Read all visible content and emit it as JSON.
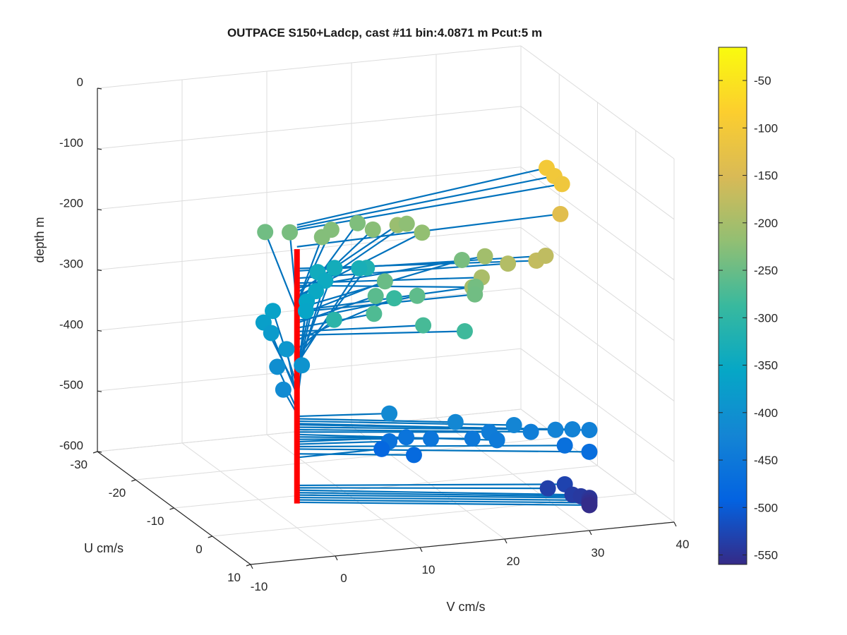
{
  "chart_data": {
    "type": "scatter",
    "title": "OUTPACE S150+Ladcp, cast #11 bin:4.0871 m  Pcut:5 m",
    "xlabel": "V cm/s",
    "ylabel": "U cm/s",
    "zlabel": "depth m",
    "xlim": [
      -10,
      40
    ],
    "ylim": [
      -30,
      10
    ],
    "zlim": [
      -600,
      0
    ],
    "x_ticks": [
      "-10",
      "0",
      "10",
      "20",
      "30",
      "40"
    ],
    "y_ticks": [
      "-30",
      "-20",
      "-10",
      "0",
      "10"
    ],
    "z_ticks": [
      "0",
      "-100",
      "-200",
      "-300",
      "-400",
      "-500",
      "-600"
    ],
    "grid": true,
    "colorbar": {
      "position": "right",
      "range": [
        -560,
        -15
      ],
      "ticks": [
        "-50",
        "-100",
        "-150",
        "-200",
        "-250",
        "-300",
        "-350",
        "-400",
        "-450",
        "-500",
        "-550"
      ],
      "colormap": [
        "#352a87",
        "#0363e1",
        "#1485d4",
        "#06a7c6",
        "#38b99e",
        "#92bf73",
        "#d9ba56",
        "#fcce2e",
        "#f9fb0e"
      ]
    },
    "profile_color": "#ff0000",
    "stick_color": "#0072bd",
    "depth_profile": {
      "top": -140,
      "bottom": -560
    },
    "points": [
      {
        "u": -10,
        "v": 34,
        "depth": -100
      },
      {
        "u": -8,
        "v": 34,
        "depth": -104
      },
      {
        "u": -6,
        "v": 34,
        "depth": -108
      },
      {
        "u": -2,
        "v": 32,
        "depth": -136
      },
      {
        "u": 5,
        "v": 26,
        "depth": -172
      },
      {
        "u": 3,
        "v": 28,
        "depth": -176
      },
      {
        "u": 2,
        "v": 24,
        "depth": -188
      },
      {
        "u": 4,
        "v": 20,
        "depth": -196
      },
      {
        "u": 6,
        "v": 18,
        "depth": -200
      },
      {
        "u": -18,
        "v": 20,
        "depth": -212
      },
      {
        "u": -4,
        "v": 24,
        "depth": -204
      },
      {
        "u": -16,
        "v": 22,
        "depth": -218
      },
      {
        "u": -20,
        "v": 22,
        "depth": -222
      },
      {
        "u": -20,
        "v": 18,
        "depth": -226
      },
      {
        "u": -22,
        "v": 14,
        "depth": -230
      },
      {
        "u": -24,
        "v": 18,
        "depth": -234
      },
      {
        "u": -20,
        "v": 12,
        "depth": -230
      },
      {
        "u": -24,
        "v": 10,
        "depth": -238
      },
      {
        "u": -26,
        "v": 8,
        "depth": -244
      },
      {
        "u": -10,
        "v": 24,
        "depth": -238
      },
      {
        "u": -2,
        "v": 22,
        "depth": -242
      },
      {
        "u": 0,
        "v": 21,
        "depth": -244
      },
      {
        "u": -8,
        "v": 14,
        "depth": -250
      },
      {
        "u": -4,
        "v": 16,
        "depth": -258
      },
      {
        "u": -6,
        "v": 12,
        "depth": -262
      },
      {
        "u": -2,
        "v": 10,
        "depth": -270
      },
      {
        "u": 2,
        "v": 14,
        "depth": -276
      },
      {
        "u": 4,
        "v": 18,
        "depth": -282
      },
      {
        "u": -10,
        "v": 16,
        "depth": -290
      },
      {
        "u": -8,
        "v": 8,
        "depth": -305
      },
      {
        "u": -26,
        "v": 20,
        "depth": -320
      },
      {
        "u": -28,
        "v": 20,
        "depth": -330
      },
      {
        "u": -30,
        "v": 18,
        "depth": -336
      },
      {
        "u": -30,
        "v": 16,
        "depth": -340
      },
      {
        "u": -28,
        "v": 16,
        "depth": -345
      },
      {
        "u": -26,
        "v": 14,
        "depth": -350
      },
      {
        "u": -24,
        "v": 12,
        "depth": -355
      },
      {
        "u": -22,
        "v": 11,
        "depth": -360
      },
      {
        "u": -24,
        "v": 8,
        "depth": -365
      },
      {
        "u": -22,
        "v": 6,
        "depth": -372
      },
      {
        "u": -20,
        "v": 6,
        "depth": -380
      },
      {
        "u": -16,
        "v": 6,
        "depth": -388
      },
      {
        "u": -12,
        "v": 6,
        "depth": -396
      },
      {
        "u": -14,
        "v": 4,
        "depth": -405
      },
      {
        "u": -8,
        "v": 2,
        "depth": -412
      },
      {
        "u": 2,
        "v": 10,
        "depth": -416
      },
      {
        "u": 6,
        "v": 16,
        "depth": -420
      },
      {
        "u": 8,
        "v": 22,
        "depth": -424
      },
      {
        "u": 10,
        "v": 26,
        "depth": -428
      },
      {
        "u": 10,
        "v": 28,
        "depth": -430
      },
      {
        "u": 10,
        "v": 30,
        "depth": -434
      },
      {
        "u": 8,
        "v": 24,
        "depth": -438
      },
      {
        "u": 6,
        "v": 20,
        "depth": -442
      },
      {
        "u": 8,
        "v": 20,
        "depth": -446
      },
      {
        "u": 6,
        "v": 18,
        "depth": -450
      },
      {
        "u": 4,
        "v": 14,
        "depth": -454
      },
      {
        "u": 2,
        "v": 12,
        "depth": -458
      },
      {
        "u": 2,
        "v": 10,
        "depth": -462
      },
      {
        "u": 8,
        "v": 28,
        "depth": -466
      },
      {
        "u": 10,
        "v": 30,
        "depth": -470
      },
      {
        "u": 4,
        "v": 12,
        "depth": -478
      },
      {
        "u": 0,
        "v": 10,
        "depth": -484
      },
      {
        "u": 8,
        "v": 28,
        "depth": -530
      },
      {
        "u": 8,
        "v": 26,
        "depth": -534
      },
      {
        "u": 10,
        "v": 28,
        "depth": -538
      },
      {
        "u": 10,
        "v": 29,
        "depth": -542
      },
      {
        "u": 10,
        "v": 30,
        "depth": -546
      },
      {
        "u": 10,
        "v": 30,
        "depth": -550
      },
      {
        "u": 10,
        "v": 30,
        "depth": -554
      },
      {
        "u": 10,
        "v": 30,
        "depth": -558
      }
    ]
  }
}
